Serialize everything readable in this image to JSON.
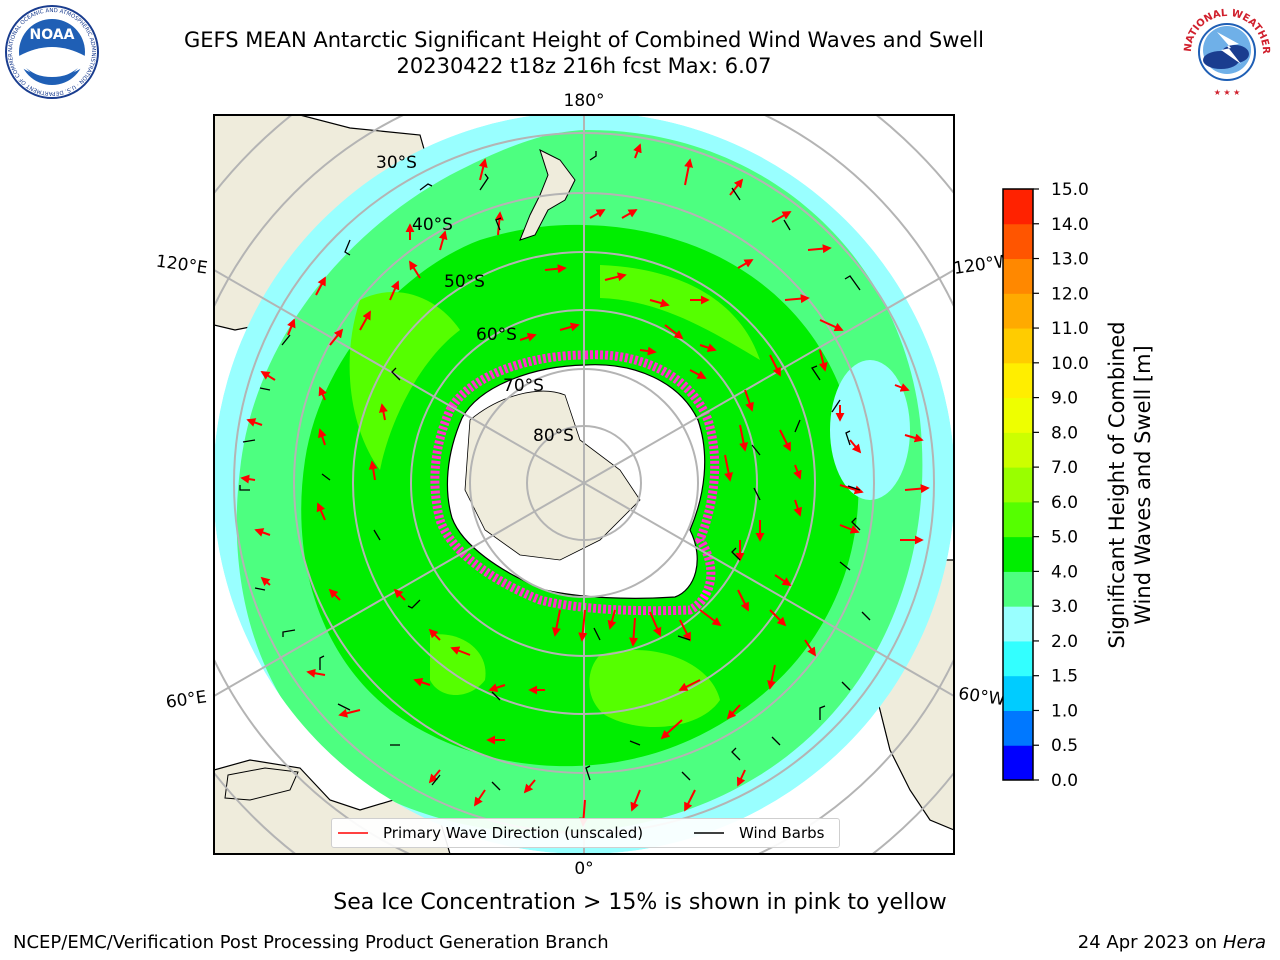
{
  "header": {
    "title_line1": "GEFS MEAN Antarctic Significant Height of Combined Wind Waves and Swell",
    "title_line2": "20230422 t18z 216h fcst   Max: 6.07"
  },
  "logos": {
    "left": "NOAA",
    "left_ring_text": "NATIONAL OCEANIC AND ATMOSPHERIC ADMINISTRATION · U.S. DEPARTMENT OF COMMERCE",
    "right_ring_text": "NATIONAL WEATHER SERVICE"
  },
  "map": {
    "lon_labels": {
      "top": "180°",
      "bottom": "0°",
      "upper_left": "120°E",
      "upper_right": "120°W",
      "lower_left": "60°E",
      "lower_right": "60°W"
    },
    "lat_labels": [
      "30°S",
      "40°S",
      "50°S",
      "60°S",
      "70°S",
      "80°S"
    ],
    "colors": {
      "land": "#efecdc",
      "ice_edge": "#ff33cc",
      "antarctica": "#ffffff"
    }
  },
  "legend": {
    "wave_direction": "Primary Wave Direction (unscaled)",
    "wind_barbs": "Wind Barbs",
    "wave_color": "#ff0000",
    "barb_color": "#000000"
  },
  "colorbar": {
    "label_line1": "Significant Height of Combined",
    "label_line2": "Wind Waves and Swell [m]",
    "ticks": [
      "0.0",
      "0.5",
      "1.0",
      "1.5",
      "2.0",
      "3.0",
      "4.0",
      "5.0",
      "6.0",
      "7.0",
      "8.0",
      "9.0",
      "10.0",
      "11.0",
      "12.0",
      "13.0",
      "14.0",
      "15.0"
    ],
    "colors": [
      "#0000ff",
      "#0078ff",
      "#00ccff",
      "#33ffff",
      "#99ffff",
      "#4dff80",
      "#00ee00",
      "#55ff00",
      "#99ff00",
      "#ccff00",
      "#eeff00",
      "#ffee00",
      "#ffcc00",
      "#ffaa00",
      "#ff8800",
      "#ff5500",
      "#ff2200"
    ]
  },
  "note": "Sea Ice Concentration > 15% is shown in pink to yellow",
  "footer": {
    "left": "NCEP/EMC/Verification Post Processing Product Generation Branch",
    "right_date": "24 Apr 2023 on ",
    "right_machine": "Hera"
  }
}
